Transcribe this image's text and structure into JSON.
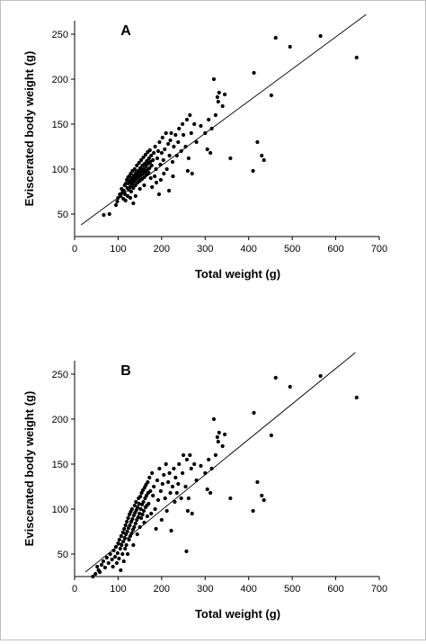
{
  "figure": {
    "background": "#ffffff",
    "frame_color": "#bfbfbf"
  },
  "chart_data": [
    {
      "type": "scatter",
      "panel_label": "A",
      "xlabel": "Total weight (g)",
      "ylabel": "Eviscerated body weight (g)",
      "xlim": [
        0,
        700
      ],
      "ylim": [
        25,
        265
      ],
      "xticks": [
        0,
        100,
        200,
        300,
        400,
        500,
        600,
        700
      ],
      "yticks": [
        50,
        100,
        150,
        200,
        250
      ],
      "grid": false,
      "legend": "none",
      "marker_color": "#000000",
      "regression_line": {
        "x": [
          15,
          670
        ],
        "y": [
          38,
          272
        ]
      },
      "points": [
        [
          67,
          49
        ],
        [
          80,
          50
        ],
        [
          95,
          60
        ],
        [
          98,
          64
        ],
        [
          100,
          68
        ],
        [
          104,
          72
        ],
        [
          106,
          70
        ],
        [
          108,
          78
        ],
        [
          110,
          74
        ],
        [
          112,
          67
        ],
        [
          113,
          76
        ],
        [
          115,
          82
        ],
        [
          116,
          72
        ],
        [
          117,
          65
        ],
        [
          118,
          84
        ],
        [
          120,
          88
        ],
        [
          121,
          79
        ],
        [
          122,
          70
        ],
        [
          123,
          91
        ],
        [
          124,
          84
        ],
        [
          125,
          77
        ],
        [
          126,
          92
        ],
        [
          127,
          87
        ],
        [
          128,
          80
        ],
        [
          128,
          68
        ],
        [
          129,
          95
        ],
        [
          130,
          86
        ],
        [
          130,
          75
        ],
        [
          131,
          90
        ],
        [
          132,
          83
        ],
        [
          133,
          98
        ],
        [
          134,
          88
        ],
        [
          135,
          79
        ],
        [
          135,
          62
        ],
        [
          136,
          93
        ],
        [
          137,
          86
        ],
        [
          138,
          100
        ],
        [
          139,
          91
        ],
        [
          140,
          82
        ],
        [
          140,
          70
        ],
        [
          141,
          96
        ],
        [
          142,
          89
        ],
        [
          143,
          104
        ],
        [
          144,
          93
        ],
        [
          145,
          85
        ],
        [
          146,
          98
        ],
        [
          147,
          90
        ],
        [
          148,
          107
        ],
        [
          149,
          95
        ],
        [
          150,
          87
        ],
        [
          150,
          78
        ],
        [
          151,
          101
        ],
        [
          152,
          93
        ],
        [
          153,
          110
        ],
        [
          154,
          98
        ],
        [
          155,
          89
        ],
        [
          156,
          104
        ],
        [
          157,
          95
        ],
        [
          158,
          113
        ],
        [
          159,
          100
        ],
        [
          160,
          91
        ],
        [
          160,
          82
        ],
        [
          161,
          106
        ],
        [
          162,
          97
        ],
        [
          163,
          116
        ],
        [
          164,
          103
        ],
        [
          165,
          94
        ],
        [
          166,
          109
        ],
        [
          167,
          99
        ],
        [
          168,
          119
        ],
        [
          169,
          106
        ],
        [
          170,
          96
        ],
        [
          171,
          112
        ],
        [
          172,
          101
        ],
        [
          173,
          121
        ],
        [
          174,
          108
        ],
        [
          175,
          90
        ],
        [
          176,
          115
        ],
        [
          177,
          104
        ],
        [
          178,
          80
        ],
        [
          180,
          110
        ],
        [
          182,
          118
        ],
        [
          184,
          92
        ],
        [
          185,
          125
        ],
        [
          187,
          100
        ],
        [
          188,
          85
        ],
        [
          190,
          112
        ],
        [
          192,
          120
        ],
        [
          194,
          72
        ],
        [
          195,
          130
        ],
        [
          197,
          105
        ],
        [
          198,
          88
        ],
        [
          200,
          118
        ],
        [
          202,
          135
        ],
        [
          204,
          110
        ],
        [
          205,
          95
        ],
        [
          207,
          122
        ],
        [
          210,
          140
        ],
        [
          212,
          100
        ],
        [
          215,
          128
        ],
        [
          217,
          76
        ],
        [
          218,
          115
        ],
        [
          220,
          132
        ],
        [
          222,
          140
        ],
        [
          225,
          108
        ],
        [
          226,
          92
        ],
        [
          228,
          125
        ],
        [
          232,
          138
        ],
        [
          235,
          115
        ],
        [
          238,
          130
        ],
        [
          240,
          145
        ],
        [
          245,
          120
        ],
        [
          248,
          150
        ],
        [
          250,
          138
        ],
        [
          255,
          125
        ],
        [
          258,
          155
        ],
        [
          260,
          98
        ],
        [
          262,
          112
        ],
        [
          265,
          160
        ],
        [
          268,
          140
        ],
        [
          270,
          95
        ],
        [
          275,
          150
        ],
        [
          280,
          130
        ],
        [
          290,
          148
        ],
        [
          300,
          140
        ],
        [
          305,
          122
        ],
        [
          308,
          155
        ],
        [
          312,
          118
        ],
        [
          315,
          145
        ],
        [
          320,
          200
        ],
        [
          324,
          160
        ],
        [
          328,
          180
        ],
        [
          330,
          175
        ],
        [
          332,
          185
        ],
        [
          340,
          170
        ],
        [
          345,
          183
        ],
        [
          358,
          112
        ],
        [
          410,
          98
        ],
        [
          412,
          207
        ],
        [
          420,
          130
        ],
        [
          430,
          115
        ],
        [
          435,
          110
        ],
        [
          452,
          182
        ],
        [
          462,
          246
        ],
        [
          495,
          236
        ],
        [
          565,
          248
        ],
        [
          648,
          224
        ]
      ]
    },
    {
      "type": "scatter",
      "panel_label": "B",
      "xlabel": "Total weight (g)",
      "ylabel": "Eviscerated body weight (g)",
      "xlim": [
        0,
        700
      ],
      "ylim": [
        25,
        265
      ],
      "xticks": [
        0,
        100,
        200,
        300,
        400,
        500,
        600,
        700
      ],
      "yticks": [
        50,
        100,
        150,
        200,
        250
      ],
      "grid": false,
      "legend": "none",
      "marker_color": "#000000",
      "regression_line": {
        "x": [
          25,
          645
        ],
        "y": [
          30,
          274
        ]
      },
      "points": [
        [
          42,
          25
        ],
        [
          48,
          28
        ],
        [
          52,
          36
        ],
        [
          55,
          32
        ],
        [
          58,
          30
        ],
        [
          62,
          38
        ],
        [
          66,
          42
        ],
        [
          70,
          35
        ],
        [
          74,
          46
        ],
        [
          78,
          40
        ],
        [
          82,
          50
        ],
        [
          86,
          44
        ],
        [
          88,
          36
        ],
        [
          90,
          54
        ],
        [
          93,
          47
        ],
        [
          95,
          58
        ],
        [
          97,
          40
        ],
        [
          99,
          51
        ],
        [
          100,
          62
        ],
        [
          102,
          45
        ],
        [
          103,
          66
        ],
        [
          105,
          56
        ],
        [
          106,
          32
        ],
        [
          107,
          70
        ],
        [
          108,
          60
        ],
        [
          110,
          50
        ],
        [
          111,
          74
        ],
        [
          112,
          64
        ],
        [
          113,
          42
        ],
        [
          114,
          78
        ],
        [
          115,
          68
        ],
        [
          116,
          56
        ],
        [
          117,
          82
        ],
        [
          118,
          72
        ],
        [
          119,
          60
        ],
        [
          120,
          86
        ],
        [
          121,
          75
        ],
        [
          122,
          50
        ],
        [
          123,
          90
        ],
        [
          124,
          79
        ],
        [
          125,
          66
        ],
        [
          126,
          94
        ],
        [
          127,
          82
        ],
        [
          128,
          70
        ],
        [
          129,
          97
        ],
        [
          130,
          86
        ],
        [
          131,
          73
        ],
        [
          132,
          100
        ],
        [
          133,
          89
        ],
        [
          134,
          77
        ],
        [
          135,
          60
        ],
        [
          136,
          93
        ],
        [
          137,
          80
        ],
        [
          138,
          104
        ],
        [
          139,
          96
        ],
        [
          140,
          84
        ],
        [
          141,
          108
        ],
        [
          142,
          99
        ],
        [
          143,
          88
        ],
        [
          144,
          72
        ],
        [
          145,
          102
        ],
        [
          146,
          91
        ],
        [
          147,
          112
        ],
        [
          148,
          106
        ],
        [
          149,
          95
        ],
        [
          150,
          80
        ],
        [
          151,
          114
        ],
        [
          152,
          100
        ],
        [
          153,
          90
        ],
        [
          154,
          118
        ],
        [
          155,
          105
        ],
        [
          156,
          94
        ],
        [
          157,
          121
        ],
        [
          158,
          108
        ],
        [
          159,
          98
        ],
        [
          160,
          85
        ],
        [
          161,
          124
        ],
        [
          162,
          112
        ],
        [
          163,
          102
        ],
        [
          164,
          127
        ],
        [
          165,
          115
        ],
        [
          166,
          104
        ],
        [
          167,
          92
        ],
        [
          168,
          130
        ],
        [
          169,
          118
        ],
        [
          170,
          106
        ],
        [
          172,
          135
        ],
        [
          174,
          120
        ],
        [
          176,
          95
        ],
        [
          178,
          140
        ],
        [
          180,
          115
        ],
        [
          182,
          125
        ],
        [
          185,
          100
        ],
        [
          187,
          78
        ],
        [
          190,
          132
        ],
        [
          192,
          110
        ],
        [
          195,
          145
        ],
        [
          198,
          120
        ],
        [
          200,
          88
        ],
        [
          202,
          128
        ],
        [
          205,
          138
        ],
        [
          208,
          112
        ],
        [
          210,
          150
        ],
        [
          212,
          98
        ],
        [
          215,
          130
        ],
        [
          218,
          140
        ],
        [
          220,
          118
        ],
        [
          222,
          76
        ],
        [
          225,
          125
        ],
        [
          228,
          145
        ],
        [
          230,
          108
        ],
        [
          232,
          135
        ],
        [
          235,
          118
        ],
        [
          238,
          128
        ],
        [
          240,
          150
        ],
        [
          245,
          112
        ],
        [
          248,
          140
        ],
        [
          250,
          160
        ],
        [
          255,
          125
        ],
        [
          257,
          53
        ],
        [
          258,
          155
        ],
        [
          260,
          98
        ],
        [
          262,
          112
        ],
        [
          265,
          160
        ],
        [
          268,
          145
        ],
        [
          270,
          95
        ],
        [
          275,
          150
        ],
        [
          280,
          132
        ],
        [
          290,
          148
        ],
        [
          300,
          140
        ],
        [
          305,
          122
        ],
        [
          308,
          155
        ],
        [
          312,
          118
        ],
        [
          315,
          145
        ],
        [
          320,
          200
        ],
        [
          324,
          160
        ],
        [
          328,
          180
        ],
        [
          330,
          175
        ],
        [
          332,
          185
        ],
        [
          340,
          170
        ],
        [
          345,
          183
        ],
        [
          358,
          112
        ],
        [
          410,
          98
        ],
        [
          412,
          207
        ],
        [
          420,
          130
        ],
        [
          430,
          115
        ],
        [
          435,
          110
        ],
        [
          452,
          182
        ],
        [
          462,
          246
        ],
        [
          495,
          236
        ],
        [
          565,
          248
        ],
        [
          648,
          224
        ]
      ]
    }
  ]
}
